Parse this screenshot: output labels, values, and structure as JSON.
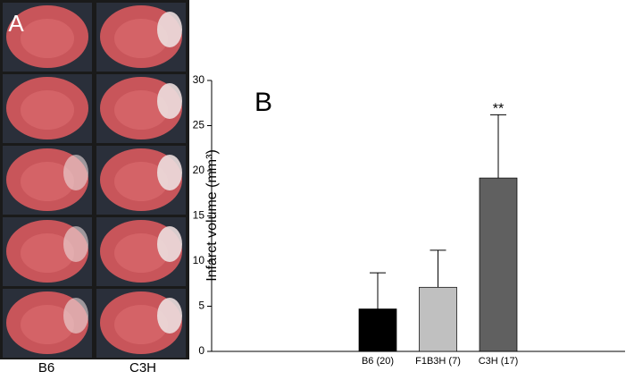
{
  "panel_a": {
    "label": "A",
    "columns": [
      "B6",
      "C3H"
    ]
  },
  "chart_data": {
    "type": "bar",
    "panel_label": "B",
    "ylabel": "Infarct volume (mm³)",
    "categories": [
      "B6 (20)",
      "F1B3H (7)",
      "C3H (17)"
    ],
    "values": [
      4.7,
      7.1,
      19.2
    ],
    "errors": [
      4.0,
      4.1,
      7.0
    ],
    "colors": [
      "#000000",
      "#c0c0c0",
      "#606060"
    ],
    "annotation": "**",
    "ylim": [
      0,
      30
    ],
    "yticks": [
      0,
      5,
      10,
      15,
      20,
      25,
      30
    ]
  }
}
